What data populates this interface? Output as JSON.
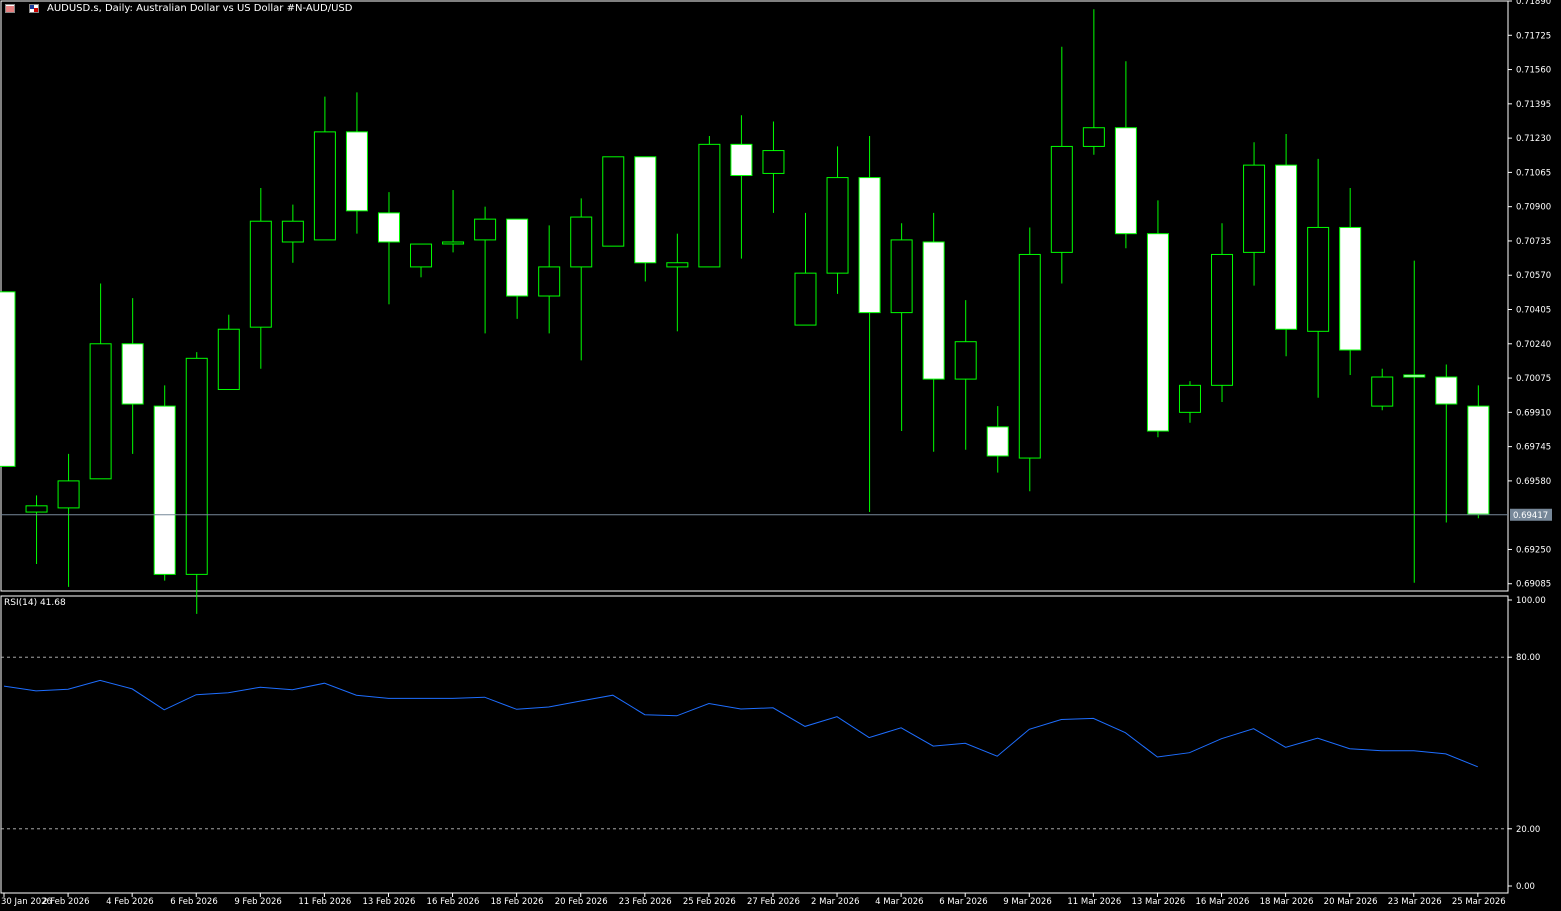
{
  "window": {
    "title": "AUDUSD.s, Daily:  Australian Dollar vs US Dollar #N-AUD/USD"
  },
  "icons": [
    "chart-properties-icon",
    "symbol-flag-icon"
  ],
  "colors": {
    "background": "#000000",
    "bull_candle": "#000000",
    "bear_candle": "#FFFFFF",
    "wick": "#00FF00",
    "rsi_line": "#1E6EFF",
    "grid_dashed": "#C0C0C0",
    "frame": "#FFFFFF",
    "bid_line": "#778899"
  },
  "rsi": {
    "label": "RSI(14) 41.68",
    "levels_text": [
      "100.00",
      "80.00",
      "20.00",
      "0.00"
    ]
  },
  "chart_data": [
    {
      "type": "candlestick",
      "title": "AUDUSD.s, Daily:  Australian Dollar vs US Dollar #N-AUD/USD",
      "ylim": [
        0.6905,
        0.7189
      ],
      "y_ticks": [
        "0.71890",
        "0.71725",
        "0.71560",
        "0.71395",
        "0.71230",
        "0.71065",
        "0.70900",
        "0.70735",
        "0.70570",
        "0.70405",
        "0.70240",
        "0.70075",
        "0.69910",
        "0.69745",
        "0.69580",
        "0.69250",
        "0.69085"
      ],
      "current_price": "0.69417",
      "x_tick_labels": [
        "30 Jan 2026",
        "2 Feb 2026",
        "4 Feb 2026",
        "6 Feb 2026",
        "9 Feb 2026",
        "11 Feb 2026",
        "13 Feb 2026",
        "16 Feb 2026",
        "18 Feb 2026",
        "20 Feb 2026",
        "23 Feb 2026",
        "25 Feb 2026",
        "27 Feb 2026",
        "2 Mar 2026",
        "4 Mar 2026",
        "6 Mar 2026",
        "9 Mar 2026",
        "11 Mar 2026",
        "13 Mar 2026",
        "16 Mar 2026",
        "18 Mar 2026",
        "20 Mar 2026",
        "23 Mar 2026",
        "25 Mar 2026"
      ],
      "candles": [
        {
          "o": 0.7049,
          "h": 0.7049,
          "l": 0.6965,
          "c": 0.6965
        },
        {
          "o": 0.6943,
          "h": 0.6951,
          "l": 0.6918,
          "c": 0.6946
        },
        {
          "o": 0.6945,
          "h": 0.6971,
          "l": 0.6907,
          "c": 0.6958
        },
        {
          "o": 0.6959,
          "h": 0.7053,
          "l": 0.6959,
          "c": 0.7024
        },
        {
          "o": 0.7024,
          "h": 0.7046,
          "l": 0.6971,
          "c": 0.6995
        },
        {
          "o": 0.6994,
          "h": 0.7004,
          "l": 0.691,
          "c": 0.6913
        },
        {
          "o": 0.6913,
          "h": 0.702,
          "l": 0.6894,
          "c": 0.7017
        },
        {
          "o": 0.7002,
          "h": 0.7038,
          "l": 0.7002,
          "c": 0.7031
        },
        {
          "o": 0.7032,
          "h": 0.7099,
          "l": 0.7012,
          "c": 0.7083
        },
        {
          "o": 0.7073,
          "h": 0.7091,
          "l": 0.7063,
          "c": 0.7083
        },
        {
          "o": 0.7074,
          "h": 0.7143,
          "l": 0.7074,
          "c": 0.7126
        },
        {
          "o": 0.7126,
          "h": 0.7145,
          "l": 0.7077,
          "c": 0.7088
        },
        {
          "o": 0.7087,
          "h": 0.7097,
          "l": 0.7043,
          "c": 0.7073
        },
        {
          "o": 0.7061,
          "h": 0.7072,
          "l": 0.7056,
          "c": 0.7072
        },
        {
          "o": 0.7073,
          "h": 0.7098,
          "l": 0.7068,
          "c": 0.7073
        },
        {
          "o": 0.7074,
          "h": 0.709,
          "l": 0.7029,
          "c": 0.7084
        },
        {
          "o": 0.7084,
          "h": 0.7084,
          "l": 0.7036,
          "c": 0.7047
        },
        {
          "o": 0.7047,
          "h": 0.7081,
          "l": 0.7029,
          "c": 0.7061
        },
        {
          "o": 0.7061,
          "h": 0.7094,
          "l": 0.7016,
          "c": 0.7085
        },
        {
          "o": 0.7071,
          "h": 0.7114,
          "l": 0.7071,
          "c": 0.7114
        },
        {
          "o": 0.7114,
          "h": 0.7114,
          "l": 0.7054,
          "c": 0.7063
        },
        {
          "o": 0.7061,
          "h": 0.7077,
          "l": 0.703,
          "c": 0.7063
        },
        {
          "o": 0.7061,
          "h": 0.7124,
          "l": 0.7061,
          "c": 0.712
        },
        {
          "o": 0.712,
          "h": 0.7134,
          "l": 0.7065,
          "c": 0.7105
        },
        {
          "o": 0.7106,
          "h": 0.7131,
          "l": 0.7087,
          "c": 0.7117
        },
        {
          "o": 0.7033,
          "h": 0.7087,
          "l": 0.7033,
          "c": 0.7058
        },
        {
          "o": 0.7058,
          "h": 0.7119,
          "l": 0.7048,
          "c": 0.7104
        },
        {
          "o": 0.7104,
          "h": 0.7124,
          "l": 0.6943,
          "c": 0.7039
        },
        {
          "o": 0.7039,
          "h": 0.7082,
          "l": 0.6982,
          "c": 0.7074
        },
        {
          "o": 0.7073,
          "h": 0.7087,
          "l": 0.6972,
          "c": 0.7007
        },
        {
          "o": 0.7007,
          "h": 0.7045,
          "l": 0.6973,
          "c": 0.7025
        },
        {
          "o": 0.6984,
          "h": 0.6994,
          "l": 0.6962,
          "c": 0.697
        },
        {
          "o": 0.6969,
          "h": 0.708,
          "l": 0.6953,
          "c": 0.7067
        },
        {
          "o": 0.7068,
          "h": 0.7167,
          "l": 0.7053,
          "c": 0.7119
        },
        {
          "o": 0.7119,
          "h": 0.7185,
          "l": 0.7115,
          "c": 0.7128
        },
        {
          "o": 0.7128,
          "h": 0.716,
          "l": 0.707,
          "c": 0.7077
        },
        {
          "o": 0.7077,
          "h": 0.7093,
          "l": 0.6979,
          "c": 0.6982
        },
        {
          "o": 0.6991,
          "h": 0.7006,
          "l": 0.6986,
          "c": 0.7004
        },
        {
          "o": 0.7004,
          "h": 0.7082,
          "l": 0.6996,
          "c": 0.7067
        },
        {
          "o": 0.7068,
          "h": 0.7121,
          "l": 0.7052,
          "c": 0.711
        },
        {
          "o": 0.711,
          "h": 0.7125,
          "l": 0.7018,
          "c": 0.7031
        },
        {
          "o": 0.703,
          "h": 0.7113,
          "l": 0.6998,
          "c": 0.708
        },
        {
          "o": 0.708,
          "h": 0.7099,
          "l": 0.7009,
          "c": 0.7021
        },
        {
          "o": 0.6994,
          "h": 0.7012,
          "l": 0.6992,
          "c": 0.7008
        },
        {
          "o": 0.7009,
          "h": 0.7064,
          "l": 0.6909,
          "c": 0.7008
        },
        {
          "o": 0.7008,
          "h": 0.7014,
          "l": 0.6938,
          "c": 0.6995
        },
        {
          "o": 0.6994,
          "h": 0.7004,
          "l": 0.694,
          "c": 0.6942
        }
      ]
    },
    {
      "type": "line",
      "title": "RSI(14) 41.68",
      "ylim": [
        0,
        100
      ],
      "series": [
        {
          "values": [
            69.9,
            68.2,
            68.8,
            71.9,
            68.9,
            61.6,
            66.9,
            67.6,
            69.5,
            68.6,
            70.9,
            66.7,
            65.6,
            65.6,
            65.6,
            66.0,
            61.8,
            62.6,
            64.7,
            66.7,
            59.9,
            59.5,
            63.8,
            61.9,
            62.3,
            55.8,
            59.2,
            51.9,
            55.3,
            48.9,
            49.9,
            45.4,
            54.8,
            58.2,
            58.6,
            53.6,
            45.1,
            46.6,
            51.5,
            55.0,
            48.5,
            51.7,
            48.0,
            47.3,
            47.3,
            46.2,
            41.68
          ]
        }
      ]
    }
  ]
}
